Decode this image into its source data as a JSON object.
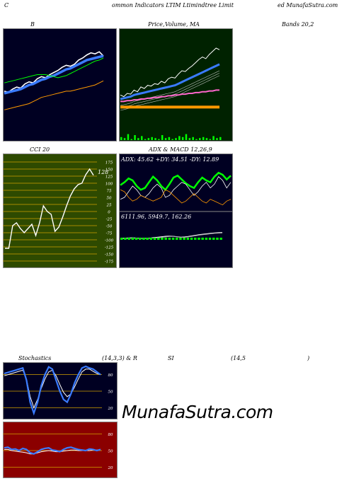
{
  "header": {
    "left": "C",
    "center": "ommon  Indicators LTIM Ltimindtree   Limit",
    "right": "ed MunafaSutra.com"
  },
  "panels": {
    "b": {
      "title": "B"
    },
    "price": {
      "title_a": "Price,",
      "title_b": "Volume, MA",
      "title_c": "Bands 20,2"
    },
    "cci": {
      "title": "CCI 20",
      "value_label": "128"
    },
    "adx": {
      "title": "ADX  & MACD 12,26,9",
      "stats": "ADX: 45.62  +DY: 34.51 -DY: 12.89",
      "macd": "6111.96,   5949.7,   162.26"
    },
    "stoch": {
      "title_left": "Stochastics",
      "title_mid": "(14,3,3) & R",
      "title_si": "SI",
      "title_right": "(14,5",
      "title_close": ")"
    },
    "rsi": {}
  },
  "watermark": "MunafaSutra.com",
  "colors": {
    "navy": "#000022",
    "dark_green": "#002200",
    "cci_bg": "#2e4a00",
    "rsi_bg": "#8b0000",
    "blue": "#3a7bff",
    "orange": "#ff9900",
    "green": "#00ff00",
    "pink": "#ff66cc"
  },
  "chart_data": [
    {
      "type": "line",
      "name": "B panel",
      "series": [
        {
          "values": [
            48,
            47,
            50,
            52,
            51,
            55,
            57,
            56,
            60,
            62,
            61,
            64,
            66,
            68,
            71,
            73,
            72,
            74,
            78,
            80,
            83,
            85,
            84,
            86,
            82
          ]
        },
        {
          "values": [
            46,
            47,
            48,
            49,
            50,
            52,
            54,
            55,
            57,
            59,
            60,
            62,
            63,
            65,
            67,
            69,
            70,
            72,
            74,
            76,
            78,
            79,
            80,
            81,
            82
          ]
        },
        {
          "values": [
            56,
            57,
            58,
            59,
            60,
            61,
            62,
            63,
            64,
            64,
            64,
            63,
            62,
            61,
            62,
            63,
            65,
            67,
            69,
            71,
            73,
            75,
            77,
            78,
            80
          ]
        },
        {
          "values": [
            30,
            31,
            32,
            33,
            34,
            35,
            36,
            38,
            40,
            42,
            43,
            44,
            45,
            46,
            47,
            48,
            48,
            49,
            50,
            51,
            52,
            53,
            54,
            56,
            58
          ]
        }
      ]
    },
    {
      "type": "line",
      "name": "Price panel",
      "series": [
        {
          "values": [
            60,
            58,
            62,
            61,
            66,
            64,
            70,
            68,
            72,
            71,
            74,
            73,
            77,
            75,
            80,
            82,
            81,
            86,
            90,
            89,
            93,
            96,
            100,
            104,
            107,
            105,
            110,
            114,
            118,
            116
          ]
        },
        {
          "values": [
            55,
            56,
            57,
            58,
            60,
            61,
            62,
            63,
            64,
            65,
            66,
            67,
            68,
            69,
            70,
            71,
            72,
            74,
            76,
            78,
            80,
            82,
            84,
            86,
            88,
            90,
            92,
            94,
            96,
            98
          ]
        },
        {
          "values": [
            52,
            52,
            53,
            53,
            54,
            54,
            55,
            55,
            56,
            56,
            57,
            57,
            58,
            58,
            59,
            59,
            60,
            60,
            61,
            61,
            62,
            62,
            63,
            63,
            64,
            64,
            65,
            65,
            66,
            66
          ]
        },
        {
          "values": [
            45,
            45,
            45,
            45,
            45,
            45,
            45,
            45,
            45,
            45,
            45,
            45,
            45,
            45,
            45,
            45,
            45,
            45,
            45,
            45,
            45,
            45,
            45,
            45,
            45,
            45,
            45,
            45,
            45,
            45
          ]
        }
      ],
      "volume": [
        3,
        2,
        6,
        1,
        5,
        2,
        4,
        1,
        2,
        3,
        2,
        1,
        5,
        2,
        3,
        1,
        2,
        4,
        3,
        6,
        2,
        3,
        1,
        2,
        3,
        2,
        1,
        4,
        2,
        3
      ]
    },
    {
      "type": "line",
      "name": "CCI 20",
      "y_ticks": [
        175,
        150,
        125,
        100,
        75,
        50,
        25,
        0,
        -25,
        -50,
        -75,
        -100,
        -125,
        -150,
        -175
      ],
      "ylim": [
        -190,
        190
      ],
      "values": [
        -130,
        -130,
        -50,
        -40,
        -60,
        -75,
        -60,
        -45,
        -85,
        -40,
        20,
        0,
        -10,
        -70,
        -55,
        -20,
        20,
        55,
        80,
        95,
        100,
        130,
        150,
        128
      ]
    },
    {
      "type": "line",
      "name": "ADX",
      "series": [
        {
          "values": [
            25,
            28,
            32,
            30,
            24,
            20,
            22,
            28,
            34,
            30,
            24,
            20,
            26,
            33,
            35,
            31,
            27,
            24,
            22,
            28,
            33,
            30,
            28,
            34,
            38,
            36,
            31,
            35
          ]
        },
        {
          "values": [
            10,
            12,
            18,
            24,
            20,
            14,
            12,
            16,
            22,
            26,
            22,
            12,
            14,
            20,
            24,
            28,
            26,
            20,
            14,
            18,
            24,
            28,
            22,
            26,
            34,
            30,
            22,
            28
          ]
        },
        {
          "values": [
            20,
            18,
            12,
            8,
            10,
            14,
            12,
            10,
            8,
            10,
            12,
            20,
            18,
            14,
            10,
            6,
            8,
            12,
            16,
            12,
            8,
            6,
            10,
            8,
            6,
            4,
            8,
            10
          ]
        }
      ],
      "macd": [
        {
          "values": [
            20,
            21,
            22,
            23,
            22,
            21,
            20,
            21,
            22,
            24,
            26,
            28,
            30,
            31,
            30,
            28,
            26,
            27,
            29,
            32,
            35,
            38,
            40,
            42,
            44,
            46,
            47,
            48
          ]
        },
        {
          "values": [
            18,
            19,
            20,
            21,
            21,
            20,
            19,
            20,
            21,
            22,
            23,
            25,
            27,
            29,
            29,
            27,
            25,
            25,
            27,
            30,
            33,
            36,
            38,
            40,
            42,
            44,
            45,
            46
          ]
        }
      ]
    },
    {
      "type": "line",
      "name": "Stochastics",
      "y_ticks": [
        80,
        50,
        20
      ],
      "series": [
        {
          "values": [
            82,
            84,
            86,
            88,
            90,
            92,
            70,
            30,
            10,
            30,
            60,
            80,
            94,
            90,
            70,
            50,
            35,
            30,
            45,
            65,
            80,
            92,
            95,
            92,
            90,
            85,
            80
          ]
        },
        {
          "values": [
            78,
            80,
            82,
            84,
            86,
            88,
            72,
            40,
            20,
            35,
            55,
            72,
            85,
            88,
            78,
            62,
            48,
            40,
            45,
            58,
            72,
            85,
            90,
            90,
            86,
            82,
            80
          ]
        }
      ]
    },
    {
      "type": "line",
      "name": "RSI",
      "y_ticks": [
        80,
        50,
        20
      ],
      "series": [
        {
          "values": [
            55,
            56,
            52,
            53,
            50,
            54,
            52,
            46,
            44,
            48,
            52,
            54,
            55,
            51,
            50,
            48,
            52,
            55,
            56,
            54,
            52,
            51,
            50,
            53,
            52,
            50,
            52
          ]
        },
        {
          "values": [
            52,
            52,
            50,
            49,
            48,
            47,
            46,
            44,
            44,
            46,
            48,
            49,
            50,
            49,
            48,
            48,
            49,
            50,
            51,
            51,
            50,
            50,
            50,
            50,
            51,
            51,
            52
          ]
        }
      ]
    }
  ]
}
